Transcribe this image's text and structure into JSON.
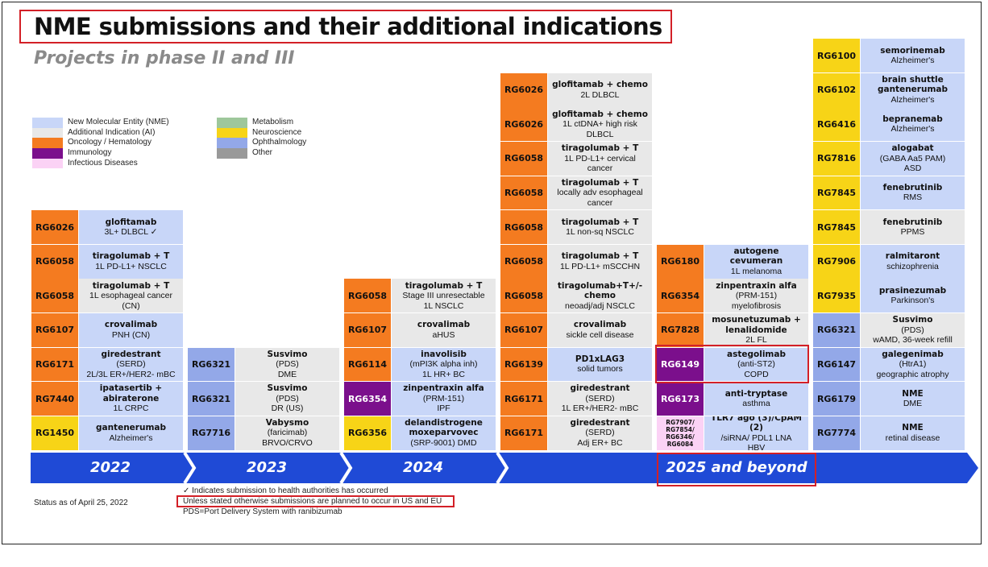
{
  "title": "NME submissions and their additional indications",
  "subtitle": "Projects in phase II and III",
  "colors": {
    "nme": "#c8d6f8",
    "ai": "#e8e8e8",
    "onc": "#f47b20",
    "imm": "#7b0f8c",
    "inf": "#fbd2f5",
    "met": "#9ec79b",
    "neuro": "#f7d417",
    "oph": "#93a8e8",
    "other": "#999999",
    "arrow": "#1f4ad6",
    "red": "#d32027"
  },
  "legend": [
    {
      "label": "New Molecular Entity (NME)",
      "color": "nme"
    },
    {
      "label": "Additional Indication (AI)",
      "color": "ai"
    },
    {
      "label": "Oncology / Hematology",
      "color": "onc"
    },
    {
      "label": "Immunology",
      "color": "imm"
    },
    {
      "label": "Infectious Diseases",
      "color": "inf"
    },
    {
      "label": "Metabolism",
      "color": "met"
    },
    {
      "label": "Neuroscience",
      "color": "neuro"
    },
    {
      "label": "Ophthalmology",
      "color": "oph"
    },
    {
      "label": "Other",
      "color": "other"
    }
  ],
  "years": [
    "2022",
    "2023",
    "2024",
    "",
    "2025 and beyond",
    ""
  ],
  "columns": [
    {
      "items": [
        {
          "code": "RG6026",
          "ta": "onc",
          "type": "nme",
          "lines": [
            "glofitamab",
            "3L+ DLBCL ✓"
          ]
        },
        {
          "code": "RG6058",
          "ta": "onc",
          "type": "nme",
          "lines": [
            "tiragolumab + T",
            "1L PD-L1+ NSCLC"
          ]
        },
        {
          "code": "RG6058",
          "ta": "onc",
          "type": "ai",
          "lines": [
            "tiragolumab + T",
            "1L esophageal cancer",
            "(CN)"
          ]
        },
        {
          "code": "RG6107",
          "ta": "onc",
          "type": "nme",
          "lines": [
            "crovalimab",
            "PNH (CN)"
          ]
        },
        {
          "code": "RG6171",
          "ta": "onc",
          "type": "nme",
          "lines": [
            "giredestrant",
            "(SERD)",
            "2L/3L ER+/HER2- mBC"
          ]
        },
        {
          "code": "RG7440",
          "ta": "onc",
          "type": "nme",
          "lines": [
            "ipatasertib + abiraterone",
            "1L CRPC"
          ]
        },
        {
          "code": "RG1450",
          "ta": "neuro",
          "type": "nme",
          "lines": [
            "gantenerumab",
            "Alzheimer's"
          ]
        }
      ]
    },
    {
      "items": [
        {
          "code": "RG6321",
          "ta": "oph",
          "type": "ai",
          "lines": [
            "Susvimo",
            "(PDS)",
            "DME"
          ]
        },
        {
          "code": "RG6321",
          "ta": "oph",
          "type": "ai",
          "lines": [
            "Susvimo",
            "(PDS)",
            "DR (US)"
          ]
        },
        {
          "code": "RG7716",
          "ta": "oph",
          "type": "ai",
          "lines": [
            "Vabysmo",
            "(faricimab)",
            "BRVO/CRVO"
          ]
        }
      ]
    },
    {
      "items": [
        {
          "code": "RG6058",
          "ta": "onc",
          "type": "ai",
          "lines": [
            "tiragolumab + T",
            "Stage III unresectable",
            "1L NSCLC"
          ]
        },
        {
          "code": "RG6107",
          "ta": "onc",
          "type": "ai",
          "lines": [
            "crovalimab",
            "aHUS"
          ]
        },
        {
          "code": "RG6114",
          "ta": "onc",
          "type": "nme",
          "lines": [
            "inavolisib",
            "(mPI3K alpha inh)",
            "1L HR+ BC"
          ]
        },
        {
          "code": "RG6354",
          "ta": "imm",
          "type": "nme",
          "lines": [
            "zinpentraxin alfa",
            "(PRM-151)",
            "IPF"
          ]
        },
        {
          "code": "RG6356",
          "ta": "neuro",
          "type": "nme",
          "lines": [
            "delandistrogene moxeparvovec",
            "(SRP-9001) DMD"
          ]
        }
      ]
    },
    {
      "items": [
        {
          "code": "RG6026",
          "ta": "onc",
          "type": "ai",
          "lines": [
            "glofitamab + chemo",
            "2L DLBCL"
          ]
        },
        {
          "code": "RG6026",
          "ta": "onc",
          "type": "ai",
          "lines": [
            "glofitamab + chemo",
            "1L ctDNA+ high risk",
            "DLBCL"
          ]
        },
        {
          "code": "RG6058",
          "ta": "onc",
          "type": "ai",
          "lines": [
            "tiragolumab + T",
            "1L PD-L1+ cervical",
            "cancer"
          ]
        },
        {
          "code": "RG6058",
          "ta": "onc",
          "type": "ai",
          "lines": [
            "tiragolumab + T",
            "locally adv esophageal",
            "cancer"
          ]
        },
        {
          "code": "RG6058",
          "ta": "onc",
          "type": "ai",
          "lines": [
            "tiragolumab + T",
            "1L non-sq NSCLC"
          ]
        },
        {
          "code": "RG6058",
          "ta": "onc",
          "type": "ai",
          "lines": [
            "tiragolumab + T",
            "1L PD-L1+ mSCCHN"
          ]
        },
        {
          "code": "RG6058",
          "ta": "onc",
          "type": "ai",
          "lines": [
            "tiragolumab+T+/- chemo",
            "neoadj/adj NSCLC"
          ]
        },
        {
          "code": "RG6107",
          "ta": "onc",
          "type": "ai",
          "lines": [
            "crovalimab",
            "sickle cell disease"
          ]
        },
        {
          "code": "RG6139",
          "ta": "onc",
          "type": "nme",
          "lines": [
            "PD1xLAG3",
            "solid tumors"
          ]
        },
        {
          "code": "RG6171",
          "ta": "onc",
          "type": "ai",
          "lines": [
            "giredestrant",
            "(SERD)",
            "1L ER+/HER2- mBC"
          ]
        },
        {
          "code": "RG6171",
          "ta": "onc",
          "type": "ai",
          "lines": [
            "giredestrant",
            "(SERD)",
            "Adj ER+ BC"
          ]
        }
      ]
    },
    {
      "items": [
        {
          "code": "RG6180",
          "ta": "onc",
          "type": "nme",
          "lines": [
            "autogene cevumeran",
            "1L melanoma"
          ]
        },
        {
          "code": "RG6354",
          "ta": "onc",
          "type": "ai",
          "lines": [
            "zinpentraxin alfa",
            "(PRM-151)",
            "myelofibrosis"
          ]
        },
        {
          "code": "RG7828",
          "ta": "onc",
          "type": "ai",
          "lines": [
            "mosunetuzumab + lenalidomide",
            "2L FL"
          ]
        },
        {
          "code": "RG6149",
          "ta": "imm",
          "type": "nme",
          "lines": [
            "astegolimab",
            "(anti-ST2)",
            "COPD"
          ]
        },
        {
          "code": "RG6173",
          "ta": "imm",
          "type": "nme",
          "lines": [
            "anti-tryptase",
            "asthma"
          ]
        },
        {
          "code": "RG7907/ RG7854/ RG6346/ RG6084",
          "ta": "inf",
          "type": "nme",
          "lines": [
            "TLR7 ago (3)/CpAM (2)",
            "/siRNA/ PDL1 LNA",
            "HBV"
          ]
        }
      ]
    },
    {
      "items": [
        {
          "code": "RG6100",
          "ta": "neuro",
          "type": "nme",
          "lines": [
            "semorinemab",
            "Alzheimer's"
          ]
        },
        {
          "code": "RG6102",
          "ta": "neuro",
          "type": "nme",
          "lines": [
            "brain shuttle gantenerumab",
            "Alzheimer's"
          ]
        },
        {
          "code": "RG6416",
          "ta": "neuro",
          "type": "nme",
          "lines": [
            "bepranemab",
            "Alzheimer's"
          ]
        },
        {
          "code": "RG7816",
          "ta": "neuro",
          "type": "nme",
          "lines": [
            "alogabat",
            "(GABA Aa5 PAM)",
            "ASD"
          ]
        },
        {
          "code": "RG7845",
          "ta": "neuro",
          "type": "nme",
          "lines": [
            "fenebrutinib",
            "RMS"
          ]
        },
        {
          "code": "RG7845",
          "ta": "neuro",
          "type": "ai",
          "lines": [
            "fenebrutinib",
            "PPMS"
          ]
        },
        {
          "code": "RG7906",
          "ta": "neuro",
          "type": "nme",
          "lines": [
            "ralmitaront",
            "schizophrenia"
          ]
        },
        {
          "code": "RG7935",
          "ta": "neuro",
          "type": "nme",
          "lines": [
            "prasinezumab",
            "Parkinson's"
          ]
        },
        {
          "code": "RG6321",
          "ta": "oph",
          "type": "ai",
          "lines": [
            "Susvimo",
            "(PDS)",
            "wAMD, 36-week refill"
          ]
        },
        {
          "code": "RG6147",
          "ta": "oph",
          "type": "nme",
          "lines": [
            "galegenimab",
            "(HtrA1)",
            "geographic atrophy"
          ]
        },
        {
          "code": "RG6179",
          "ta": "oph",
          "type": "nme",
          "lines": [
            "NME",
            "DME"
          ]
        },
        {
          "code": "RG7774",
          "ta": "oph",
          "type": "nme",
          "lines": [
            "NME",
            "retinal disease"
          ]
        }
      ]
    }
  ],
  "footnotes": {
    "status": "Status as of April 25, 2022",
    "check": "✓ Indicates submission to health authorities has occurred",
    "unless": "Unless stated otherwise submissions are planned to occur in US and EU",
    "pds": "PDS=Port Delivery System with ranibizumab"
  }
}
